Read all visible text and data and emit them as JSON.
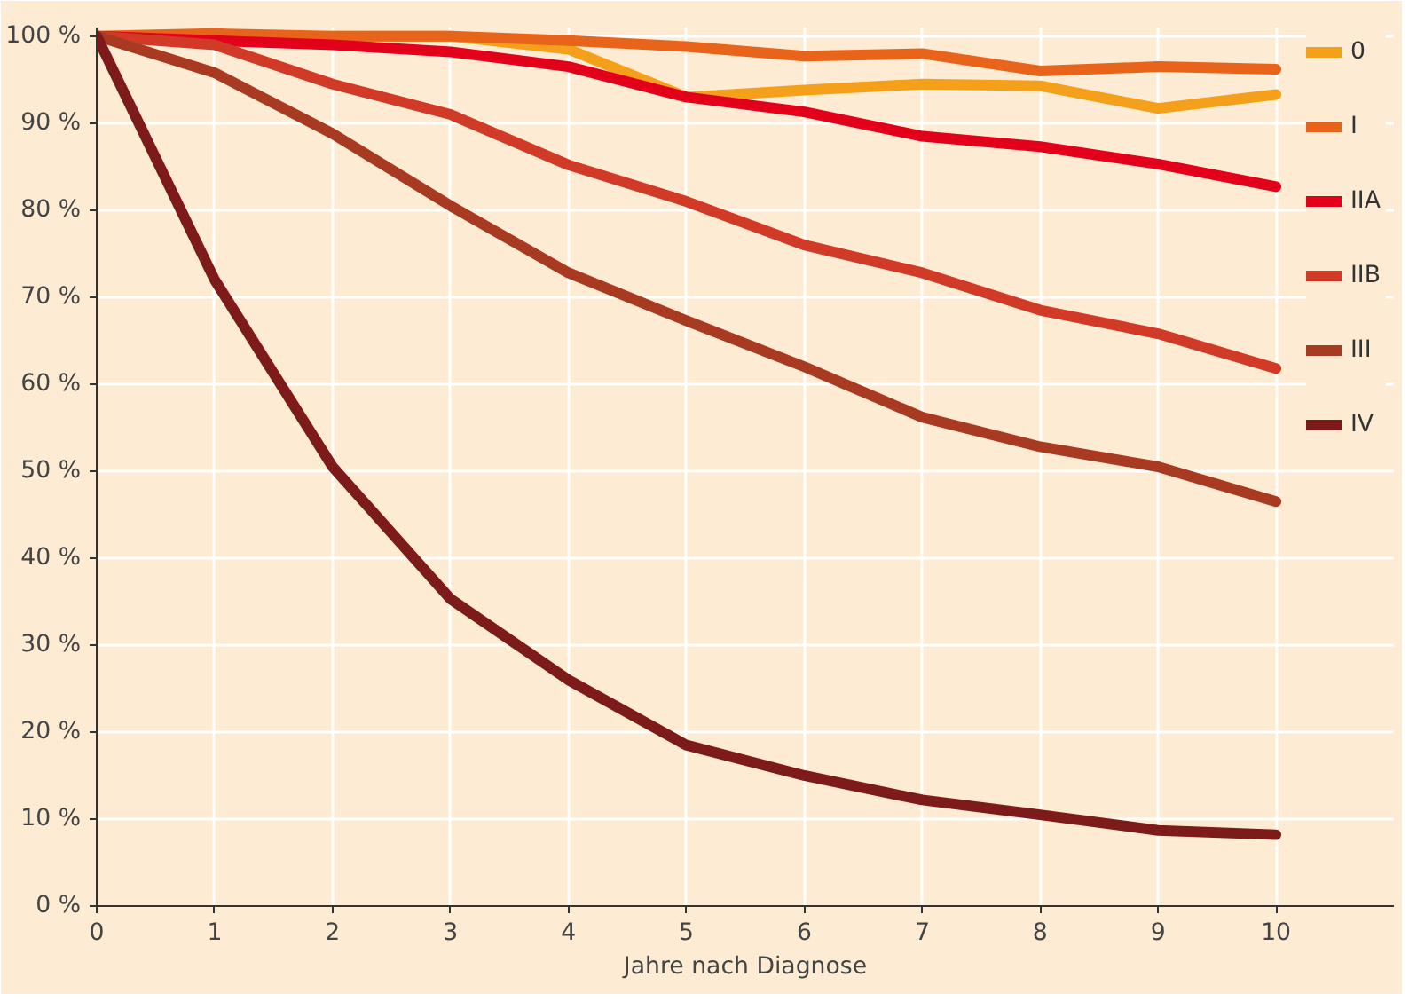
{
  "chart_data": {
    "type": "line",
    "xlabel": "Jahre nach Diagnose",
    "x": [
      0,
      1,
      2,
      3,
      4,
      5,
      6,
      7,
      8,
      9,
      10
    ],
    "series": [
      {
        "name": "0",
        "color": "#f5a01a",
        "values": [
          100,
          99.5,
          100,
          100,
          98.5,
          93,
          93.8,
          94.5,
          94.3,
          91.7,
          93.3
        ]
      },
      {
        "name": "I",
        "color": "#e8641b",
        "values": [
          100,
          100.3,
          100,
          100,
          99.5,
          98.8,
          97.7,
          98,
          96,
          96.5,
          96.2
        ]
      },
      {
        "name": "IIA",
        "color": "#e2001a",
        "values": [
          100,
          99.5,
          99,
          98.2,
          96.5,
          93,
          91.3,
          88.5,
          87.3,
          85.3,
          82.7
        ]
      },
      {
        "name": "IIB",
        "color": "#d03a26",
        "values": [
          100,
          99,
          94.5,
          91,
          85.2,
          81,
          76,
          72.8,
          68.5,
          65.8,
          61.8
        ]
      },
      {
        "name": "III",
        "color": "#a83a22",
        "values": [
          100,
          95.8,
          88.8,
          80.5,
          72.8,
          67.3,
          62,
          56.2,
          52.8,
          50.5,
          46.5
        ]
      },
      {
        "name": "IV",
        "color": "#7d1a1a",
        "values": [
          100,
          72,
          50.5,
          35.3,
          26,
          18.5,
          15,
          12.2,
          10.5,
          8.7,
          8.2
        ]
      }
    ],
    "xlim": [
      0,
      11
    ],
    "xticks": [
      0,
      1,
      2,
      3,
      4,
      5,
      6,
      7,
      8,
      9,
      10
    ],
    "ylim": [
      0,
      101
    ],
    "yticks": [
      {
        "value": 0,
        "label": "0 %"
      },
      {
        "value": 10,
        "label": "10 %"
      },
      {
        "value": 20,
        "label": "20 %"
      },
      {
        "value": 30,
        "label": "30 %"
      },
      {
        "value": 40,
        "label": "40 %"
      },
      {
        "value": 50,
        "label": "50 %"
      },
      {
        "value": 60,
        "label": "60 %"
      },
      {
        "value": 70,
        "label": "70 %"
      },
      {
        "value": 80,
        "label": "80 %"
      },
      {
        "value": 90,
        "label": "90 %"
      },
      {
        "value": 100,
        "label": "100 %"
      }
    ],
    "grid": true,
    "legend": "right",
    "line_style": "solid",
    "marker": "none"
  }
}
